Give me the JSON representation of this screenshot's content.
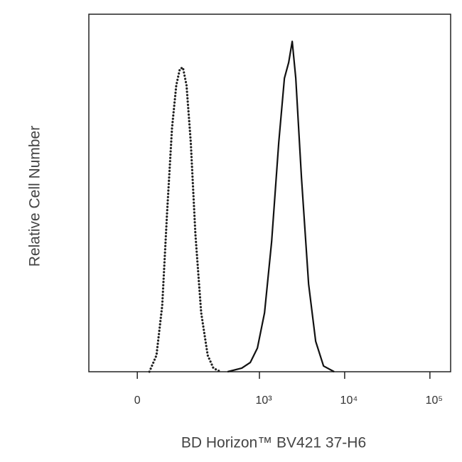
{
  "chart_data": {
    "type": "line",
    "xlabel": "BD Horizon™ BV421 37-H6",
    "ylabel": "Relative Cell Number",
    "xscale": "biexponential",
    "xlim": [
      -127,
      175000
    ],
    "ylim": [
      0,
      100
    ],
    "xticks": [
      0,
      {
        "value": 1000,
        "label": "10³"
      },
      {
        "value": 10000,
        "label": "10⁴"
      },
      {
        "value": 100000,
        "label": "10⁵"
      }
    ],
    "series": [
      {
        "color": "#222222",
        "dash": "dotted",
        "x": [
          24.6,
          40,
          53.6,
          66,
          80,
          93,
          105,
          116,
          130,
          148,
          170,
          201,
          242,
          284,
          346
        ],
        "values": [
          0,
          4.6,
          18.5,
          44.3,
          68.2,
          80.1,
          84.7,
          85.1,
          80.1,
          64.2,
          38.4,
          16.5,
          4.6,
          1.0,
          0
        ]
      },
      {
        "color": "#111111",
        "dash": "solid",
        "x": [
          420,
          619,
          781,
          946,
          1148,
          1391,
          1687,
          1965,
          2205,
          2427,
          2671,
          3115,
          3778,
          4573,
          5654,
          7541
        ],
        "values": [
          0,
          1.0,
          2.6,
          6.6,
          16.5,
          36.4,
          64.2,
          82.1,
          86.5,
          92.4,
          82.1,
          54.3,
          24.5,
          8.5,
          1.6,
          0
        ]
      }
    ]
  }
}
